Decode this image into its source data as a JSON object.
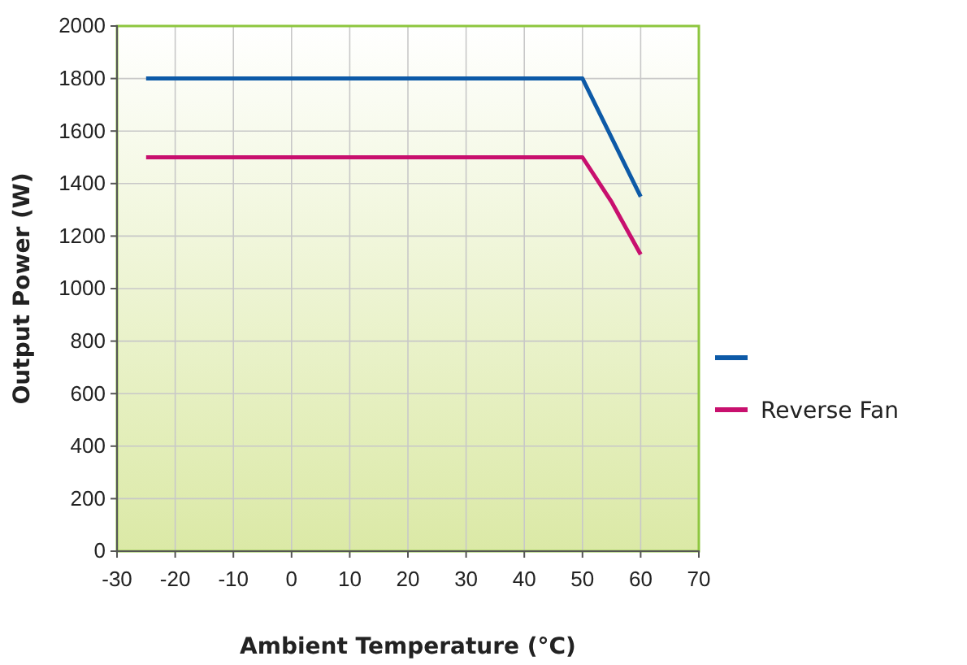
{
  "chart_data": {
    "type": "line",
    "xlabel": "Ambient Temperature (°C)",
    "ylabel": "Output Power (W)",
    "xlim": [
      -30,
      70
    ],
    "xticks": [
      -30,
      -20,
      -10,
      0,
      10,
      20,
      30,
      40,
      50,
      60,
      70
    ],
    "ylim": [
      0,
      2000
    ],
    "yticks": [
      0,
      200,
      400,
      600,
      800,
      1000,
      1200,
      1400,
      1600,
      1800,
      2000
    ],
    "grid": true,
    "legend": "right",
    "marker": "none",
    "line_style": "solid",
    "series": [
      {
        "color": "#0d5aa7",
        "x": [
          -25,
          50,
          60
        ],
        "values": [
          1800,
          1800,
          1350
        ]
      },
      {
        "name": "Reverse Fan",
        "color": "#c8106e",
        "x": [
          -25,
          50,
          55,
          60
        ],
        "values": [
          1500,
          1500,
          1330,
          1130
        ]
      }
    ]
  }
}
